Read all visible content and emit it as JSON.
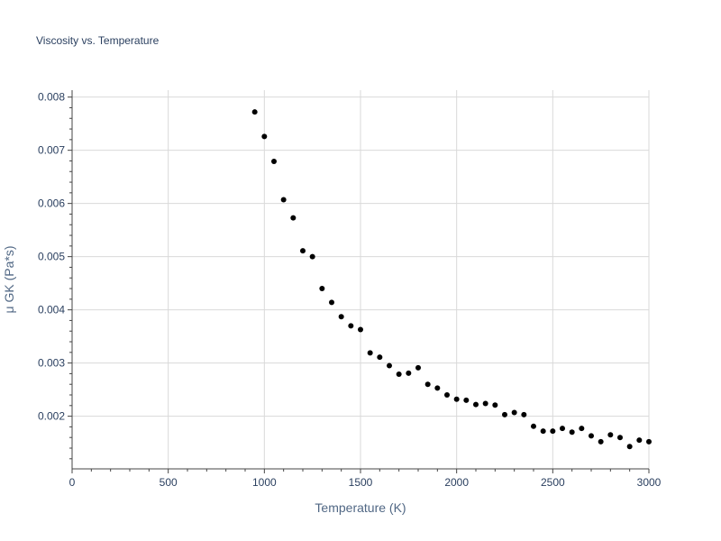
{
  "chart_data": {
    "type": "scatter",
    "title": "Viscosity vs. Temperature",
    "xlabel": "Temperature (K)",
    "ylabel": "μ GK (Pa*s)",
    "xlim": [
      0,
      3000
    ],
    "ylim": [
      0.00101,
      0.00813
    ],
    "x_ticks": [
      0,
      500,
      1000,
      1500,
      2000,
      2500,
      3000
    ],
    "x_tick_labels": [
      "0",
      "500",
      "1000",
      "1500",
      "2000",
      "2500",
      "3000"
    ],
    "y_ticks": [
      0.002,
      0.003,
      0.004,
      0.005,
      0.006,
      0.007,
      0.008
    ],
    "y_tick_labels": [
      "0.002",
      "0.003",
      "0.004",
      "0.005",
      "0.006",
      "0.007",
      "0.008"
    ],
    "grid": true,
    "marker_color": "#000000",
    "series": [
      {
        "x": [
          950,
          1000,
          1050,
          1100,
          1150,
          1200,
          1250,
          1300,
          1350,
          1400,
          1450,
          1500,
          1550,
          1600,
          1650,
          1700,
          1750,
          1800,
          1850,
          1900,
          1950,
          2000,
          2050,
          2100,
          2150,
          2200,
          2250,
          2300,
          2350,
          2400,
          2450,
          2500,
          2550,
          2600,
          2650,
          2700,
          2750,
          2800,
          2850,
          2900,
          2950,
          3000
        ],
        "y": [
          0.00772,
          0.00726,
          0.00679,
          0.00607,
          0.00573,
          0.00511,
          0.005,
          0.0044,
          0.00414,
          0.00387,
          0.0037,
          0.00363,
          0.00319,
          0.00311,
          0.00295,
          0.00279,
          0.00281,
          0.00291,
          0.0026,
          0.00253,
          0.0024,
          0.00232,
          0.0023,
          0.00222,
          0.00224,
          0.00221,
          0.00203,
          0.00207,
          0.00203,
          0.00181,
          0.00172,
          0.00172,
          0.00177,
          0.0017,
          0.00177,
          0.00163,
          0.00152,
          0.00165,
          0.0016,
          0.00143,
          0.00155,
          0.00152
        ]
      }
    ]
  }
}
